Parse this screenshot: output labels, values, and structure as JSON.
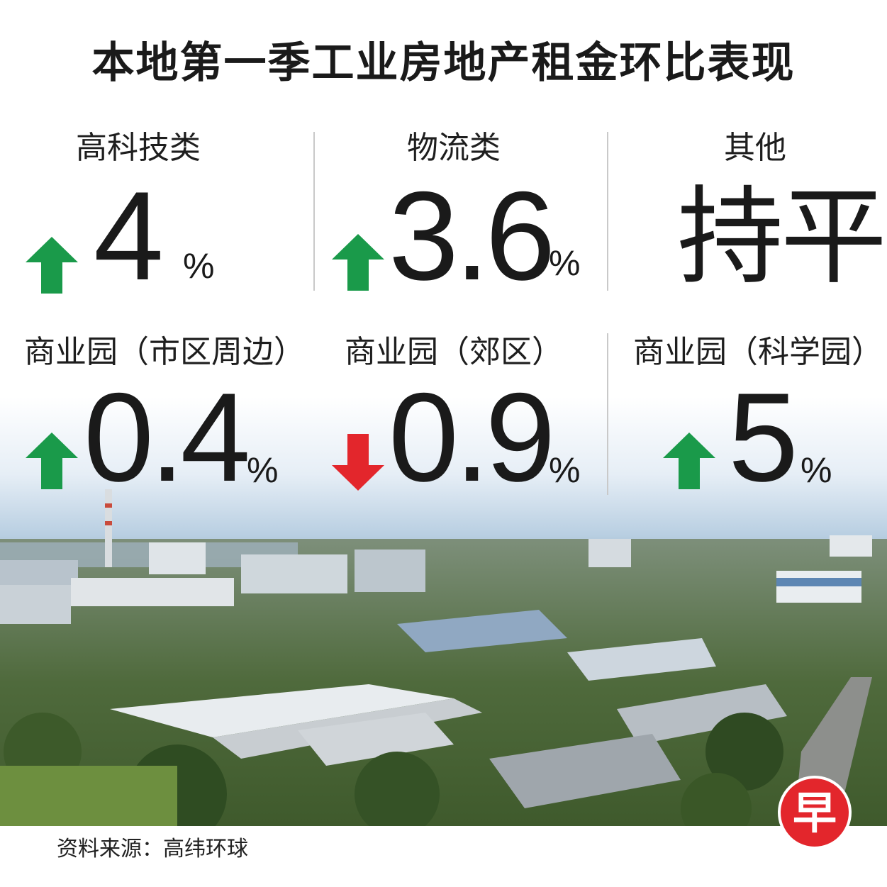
{
  "title": "本地第一季工业房地产租金环比表现",
  "colors": {
    "up": "#1a9a4a",
    "down": "#e3262c",
    "divider": "#c9c9c9"
  },
  "items": [
    {
      "label": "高科技类",
      "value": "4",
      "unit": "%",
      "direction": "up",
      "arrow_icon": "up-arrow-icon"
    },
    {
      "label": "物流类",
      "value": "3.6",
      "unit": "%",
      "direction": "up",
      "arrow_icon": "up-arrow-icon"
    },
    {
      "label": "其他",
      "value": "持平",
      "unit": "",
      "direction": "flat"
    },
    {
      "label": "商业园（市区周边）",
      "value": "0.4",
      "unit": "%",
      "direction": "up",
      "arrow_icon": "up-arrow-icon"
    },
    {
      "label": "商业园（郊区）",
      "value": "0.9",
      "unit": "%",
      "direction": "down",
      "arrow_icon": "down-arrow-icon"
    },
    {
      "label": "商业园（科学园）",
      "value": "5",
      "unit": "%",
      "direction": "up",
      "arrow_icon": "up-arrow-icon"
    }
  ],
  "source": "资料来源：高纬环球",
  "logo": {
    "text": "早",
    "color": "#e3262c",
    "icon": "zaobao-logo-icon"
  }
}
